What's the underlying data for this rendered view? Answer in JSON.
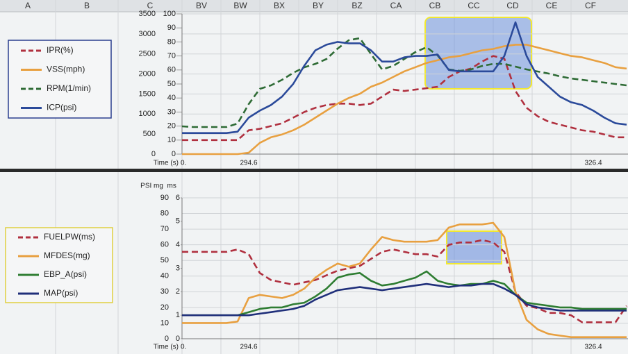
{
  "spreadsheet": {
    "columns": [
      "A",
      "B",
      "C",
      "BV",
      "BW",
      "BX",
      "BY",
      "BZ",
      "CA",
      "CB",
      "CC",
      "CD",
      "CE",
      "CF"
    ]
  },
  "chart_data": [
    {
      "type": "line",
      "x_label": "Time (s)",
      "categories": [
        "0.",
        null,
        null,
        null,
        null,
        null,
        "294.6",
        null,
        null,
        null,
        null,
        null,
        null,
        null,
        null,
        null,
        null,
        null,
        null,
        null,
        null,
        null,
        null,
        null,
        null,
        null,
        null,
        null,
        null,
        null,
        null,
        null,
        null,
        null,
        null,
        null,
        null,
        "326.4",
        null,
        null,
        null
      ],
      "ylim": [
        0,
        3500
      ],
      "yticks": [
        0,
        500,
        1000,
        1500,
        2000,
        2500,
        3000,
        3500
      ],
      "y2lim": [
        0,
        100
      ],
      "y2ticks": [
        0,
        10,
        20,
        30,
        40,
        50,
        60,
        70,
        80,
        90,
        100
      ],
      "grid": true,
      "series": [
        {
          "name": "IPR(%)",
          "color": "#b0303f",
          "dashed": true,
          "axis": "y2",
          "values": [
            10,
            10,
            10,
            10,
            10,
            10,
            17,
            18,
            20,
            22,
            26,
            30,
            33,
            35,
            36,
            36,
            35,
            36,
            41,
            46,
            45,
            46,
            47,
            48,
            55,
            59,
            61,
            66,
            70,
            68,
            45,
            33,
            27,
            23,
            21,
            19,
            17,
            16,
            14,
            12,
            12
          ]
        },
        {
          "name": "VSS(mph)",
          "color": "#e8a040",
          "dashed": false,
          "axis": "y2",
          "values": [
            0,
            0,
            0,
            0,
            0,
            0,
            1,
            8,
            12,
            14,
            17,
            21,
            26,
            31,
            36,
            40,
            43,
            48,
            51,
            55,
            59,
            62,
            65,
            67,
            69,
            70,
            72,
            74,
            75,
            77,
            78,
            78,
            76,
            74,
            72,
            70,
            69,
            67,
            65,
            62,
            61
          ]
        },
        {
          "name": "RPM(1/min)",
          "color": "#2e6b35",
          "dashed": true,
          "values": [
            693,
            676,
            676,
            676,
            676,
            763,
            1248,
            1629,
            1716,
            1854,
            2028,
            2166,
            2253,
            2374,
            2634,
            2842,
            2894,
            2496,
            2114,
            2201,
            2374,
            2547,
            2669,
            2461,
            2114,
            2080,
            2114,
            2201,
            2253,
            2253,
            2184,
            2114,
            2062,
            2010,
            1941,
            1889,
            1854,
            1820,
            1785,
            1750,
            1716
          ]
        },
        {
          "name": "ICP(psi)",
          "color": "#2b4a9a",
          "dashed": false,
          "axis": "y2",
          "values": [
            15,
            15,
            15,
            15,
            15,
            16,
            26,
            31,
            35,
            41,
            50,
            63,
            74,
            78,
            80,
            79,
            79,
            74,
            66,
            66,
            69,
            70,
            70,
            71,
            60,
            59,
            59,
            59,
            59,
            70,
            94,
            70,
            55,
            48,
            41,
            37,
            35,
            31,
            26,
            22,
            21
          ]
        }
      ]
    },
    {
      "type": "line",
      "x_label": "Time (s)",
      "y_label": "PSI mg  ms",
      "categories": [
        "0.",
        null,
        null,
        null,
        null,
        null,
        "294.6",
        null,
        null,
        null,
        null,
        null,
        null,
        null,
        null,
        null,
        null,
        null,
        null,
        null,
        null,
        null,
        null,
        null,
        null,
        null,
        null,
        null,
        null,
        null,
        null,
        null,
        null,
        null,
        null,
        null,
        null,
        "326.4",
        null,
        null,
        null
      ],
      "ylim": [
        0,
        90
      ],
      "yticks": [
        0,
        10,
        20,
        30,
        40,
        50,
        60,
        70,
        80,
        90
      ],
      "y2lim": [
        0,
        6
      ],
      "y2ticks": [
        0,
        1,
        2,
        3,
        4,
        5,
        6
      ],
      "grid": true,
      "series": [
        {
          "name": "FUELPW(ms)",
          "color": "#b0303f",
          "dashed": true,
          "axis": "y2",
          "values": [
            3.7,
            3.7,
            3.7,
            3.7,
            3.7,
            3.8,
            3.6,
            2.8,
            2.5,
            2.4,
            2.3,
            2.4,
            2.5,
            2.7,
            2.9,
            3.0,
            3.1,
            3.4,
            3.7,
            3.8,
            3.7,
            3.6,
            3.6,
            3.5,
            4.0,
            4.1,
            4.1,
            4.2,
            4.1,
            3.7,
            2.0,
            1.4,
            1.3,
            1.1,
            1.1,
            1.0,
            0.7,
            0.7,
            0.7,
            0.7,
            1.4
          ]
        },
        {
          "name": "MFDES(mg)",
          "color": "#e8a040",
          "dashed": false,
          "values": [
            10,
            10,
            10,
            10,
            10,
            11,
            26,
            28,
            27,
            26,
            28,
            32,
            39,
            44,
            48,
            46,
            48,
            57,
            65,
            63,
            62,
            62,
            62,
            63,
            71,
            73,
            73,
            73,
            74,
            65,
            30,
            12,
            6,
            3,
            2,
            1,
            1,
            1,
            1,
            1,
            1
          ]
        },
        {
          "name": "EBP_A(psi)",
          "color": "#2e7d32",
          "dashed": false,
          "values": [
            15,
            15,
            15,
            15,
            15,
            15,
            17,
            19,
            20,
            20,
            22,
            23,
            27,
            32,
            39,
            41,
            42,
            37,
            34,
            35,
            37,
            39,
            43,
            37,
            35,
            34,
            35,
            35,
            37,
            35,
            28,
            23,
            22,
            21,
            20,
            20,
            19,
            19,
            19,
            19,
            19
          ]
        },
        {
          "name": "MAP(psi)",
          "color": "#1f2f7a",
          "dashed": false,
          "values": [
            15,
            15,
            15,
            15,
            15,
            15,
            15,
            16,
            17,
            18,
            19,
            21,
            25,
            28,
            31,
            32,
            33,
            32,
            31,
            32,
            33,
            34,
            35,
            34,
            33,
            34,
            34,
            35,
            35,
            32,
            28,
            22,
            20,
            19,
            18,
            18,
            18,
            18,
            18,
            18,
            18
          ]
        }
      ]
    }
  ]
}
